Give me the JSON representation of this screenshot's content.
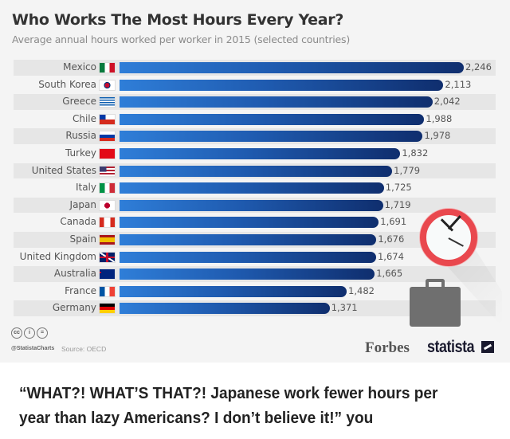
{
  "chart_data": {
    "type": "bar",
    "orientation": "horizontal",
    "title": "Who Works The Most Hours Every Year?",
    "subtitle": "Average annual hours worked per worker in 2015 (selected countries)",
    "categories": [
      "Mexico",
      "South Korea",
      "Greece",
      "Chile",
      "Russia",
      "Turkey",
      "United States",
      "Italy",
      "Japan",
      "Canada",
      "Spain",
      "United Kingdom",
      "Australia",
      "France",
      "Germany"
    ],
    "values": [
      2246,
      2113,
      2042,
      1988,
      1978,
      1832,
      1779,
      1725,
      1719,
      1691,
      1676,
      1674,
      1665,
      1482,
      1371
    ],
    "value_labels": [
      "2,246",
      "2,113",
      "2,042",
      "1,988",
      "1,978",
      "1,832",
      "1,779",
      "1,725",
      "1,719",
      "1,691",
      "1,676",
      "1,674",
      "1,665",
      "1,482",
      "1,371"
    ],
    "xlabel": "",
    "ylabel": "",
    "grid": false,
    "legend": "none",
    "bar_color_start": "#2f7ed8",
    "bar_color_end": "#0f2e6e"
  },
  "flags": [
    "mexico-flag",
    "south-korea-flag",
    "greece-flag",
    "chile-flag",
    "russia-flag",
    "turkey-flag",
    "united-states-flag",
    "italy-flag",
    "japan-flag",
    "canada-flag",
    "spain-flag",
    "united-kingdom-flag",
    "australia-flag",
    "france-flag",
    "germany-flag"
  ],
  "footer": {
    "license_icons": [
      "cc",
      "i",
      "="
    ],
    "handle": "@StatistaCharts",
    "source": "Source: OECD",
    "brand1": "Forbes",
    "brand2": "statista"
  },
  "caption": "“WHAT?! WHAT’S THAT?! Japanese work fewer hours per year than lazy Americans? I don’t believe it!” you"
}
